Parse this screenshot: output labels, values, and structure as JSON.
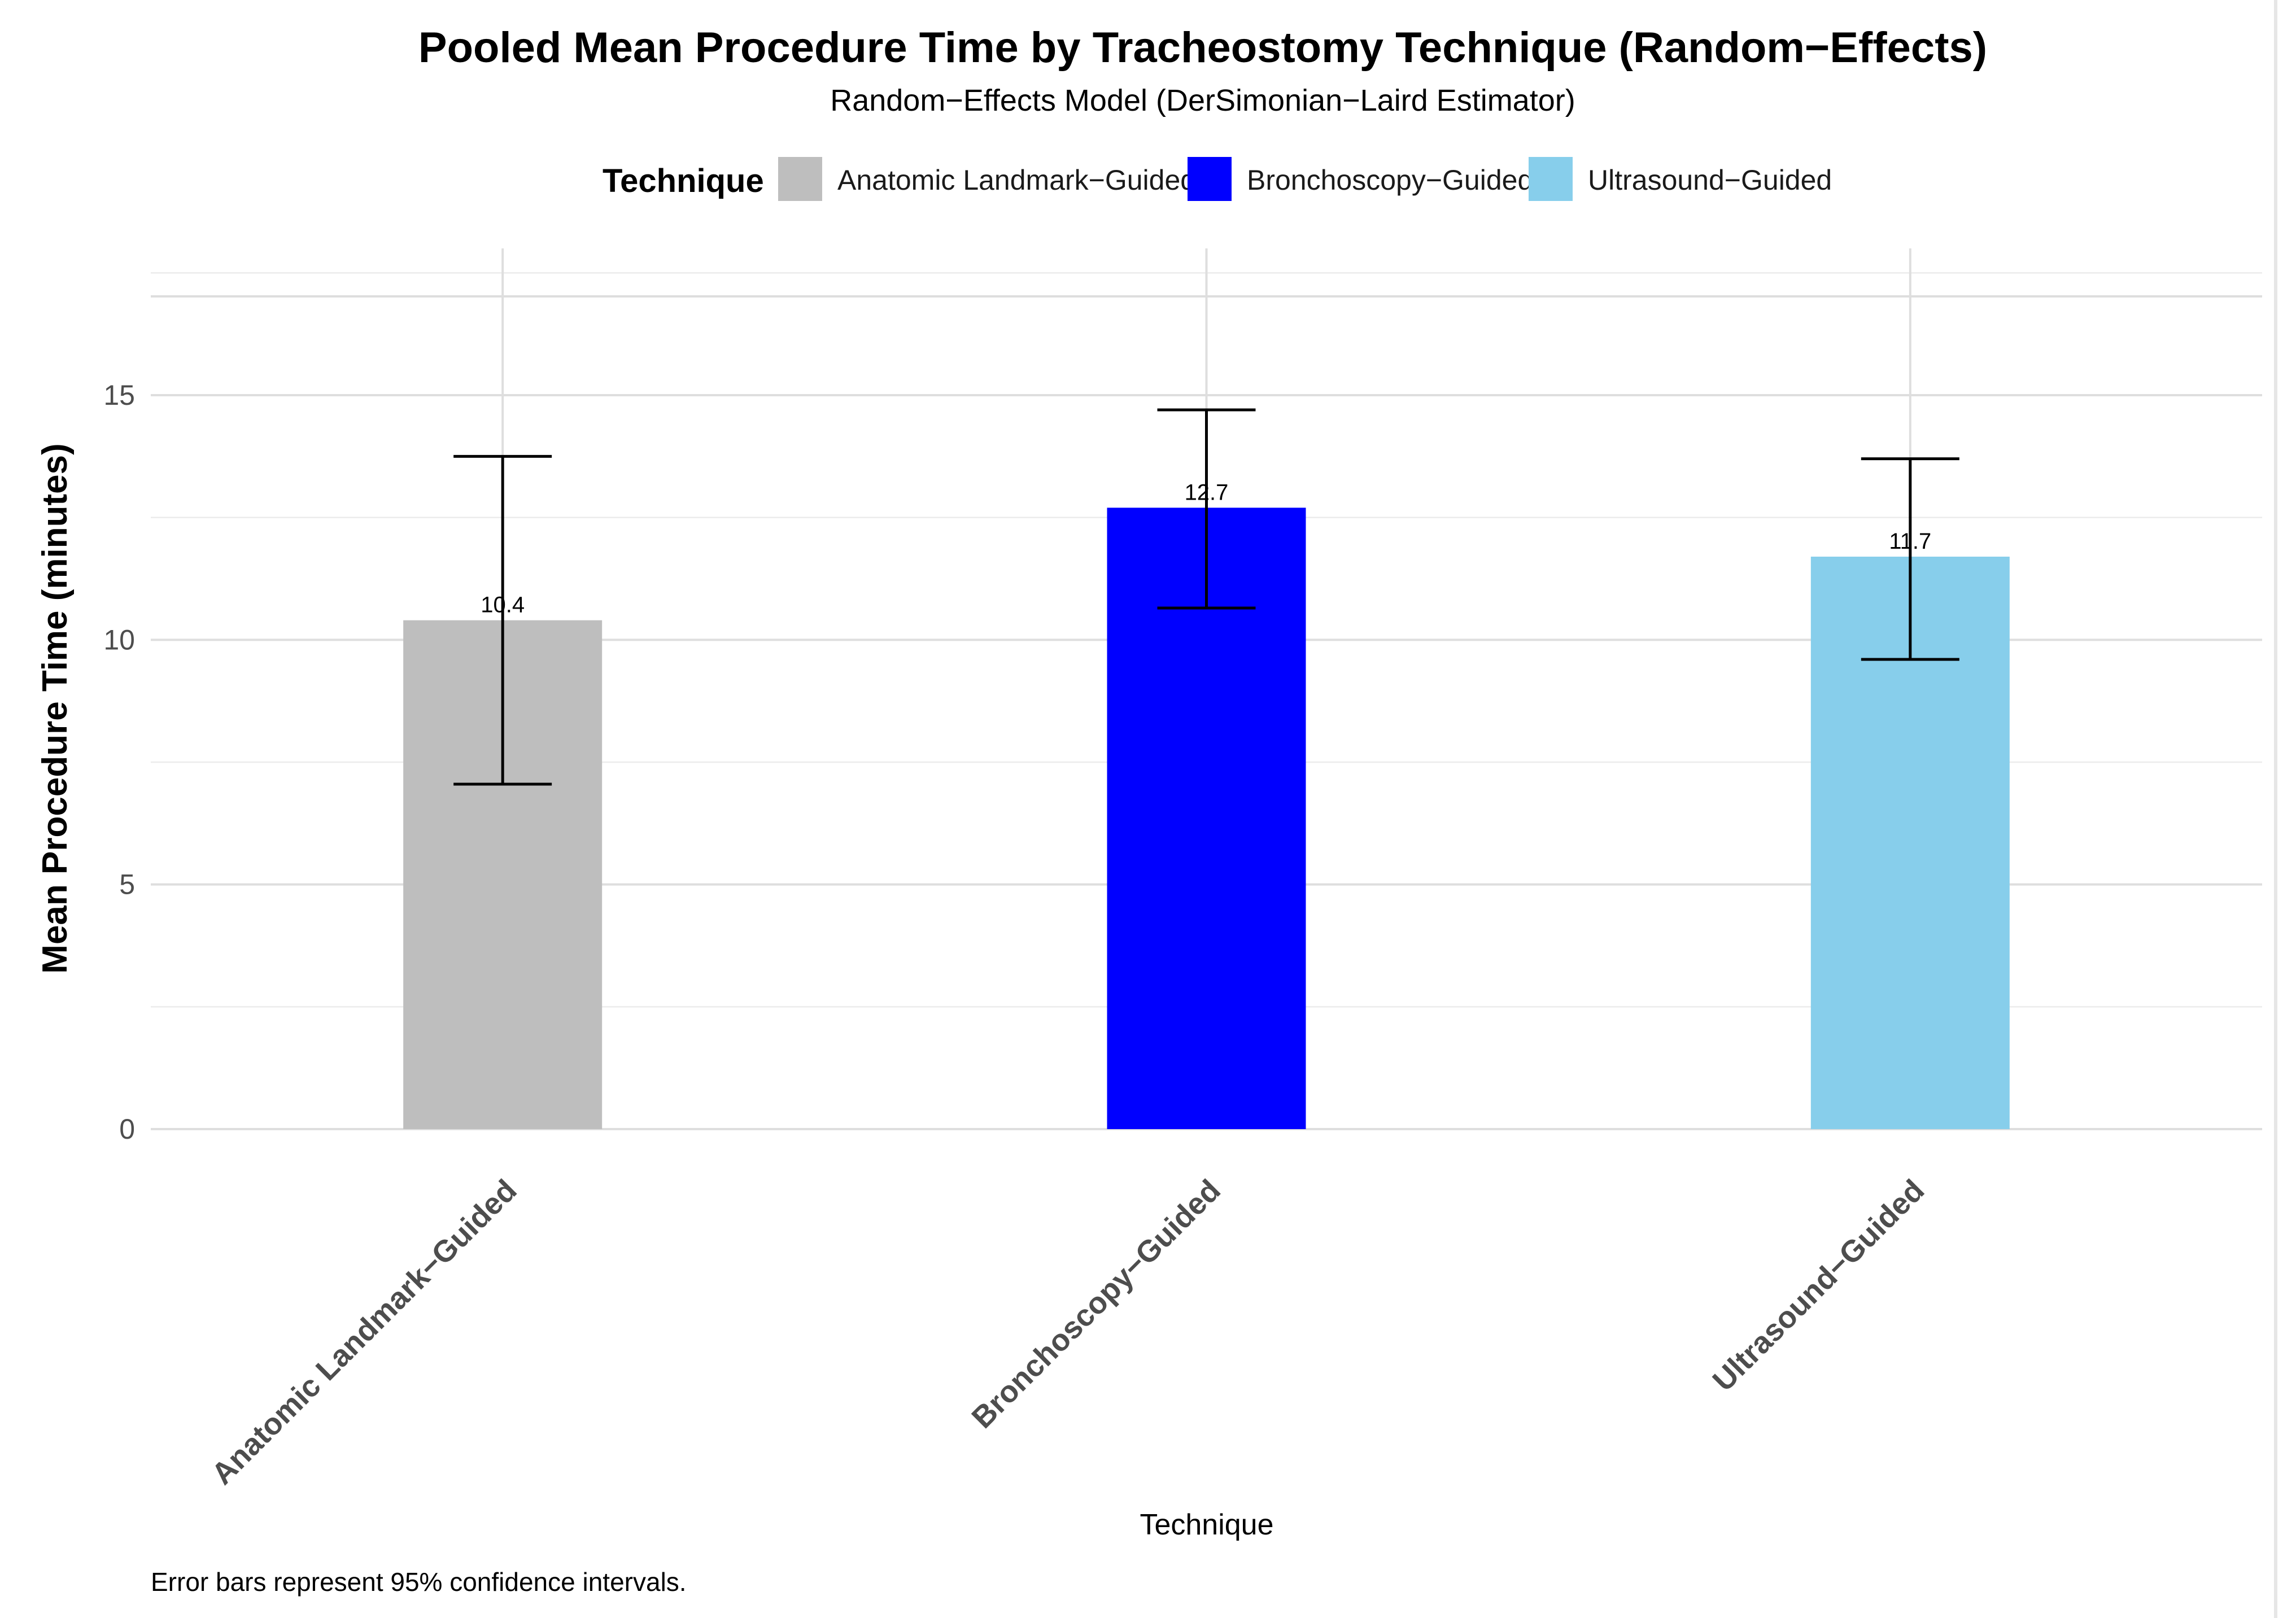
{
  "chart_data": {
    "type": "bar",
    "title": "Pooled Mean Procedure Time by Tracheostomy Technique (Random−Effects)",
    "subtitle": "Random−Effects Model (DerSimonian−Laird Estimator)",
    "legend": {
      "title": "Technique",
      "position": "top",
      "entries": [
        {
          "label": "Anatomic Landmark−Guided",
          "color": "#bebebe"
        },
        {
          "label": "Bronchoscopy−Guided",
          "color": "#0000ff"
        },
        {
          "label": "Ultrasound−Guided",
          "color": "#87ceeb"
        }
      ]
    },
    "categories": [
      "Anatomic Landmark−Guided",
      "Bronchoscopy−Guided",
      "Ultrasound−Guided"
    ],
    "values": [
      10.4,
      12.7,
      11.7
    ],
    "value_labels": [
      "10.4",
      "12.7",
      "11.7"
    ],
    "ci_lower": [
      7.05,
      10.65,
      9.6
    ],
    "ci_upper": [
      13.75,
      14.7,
      13.7
    ],
    "colors": [
      "#bebebe",
      "#0000ff",
      "#87ceeb"
    ],
    "xlabel": "Technique",
    "ylabel": "Mean Procedure Time (minutes)",
    "ylim": [
      0,
      18.0
    ],
    "yticks": [
      0,
      5,
      10,
      15
    ],
    "ytick_labels": [
      "0",
      "5",
      "10",
      "15"
    ],
    "grid": true,
    "caption": "Error bars represent 95% confidence intervals."
  }
}
